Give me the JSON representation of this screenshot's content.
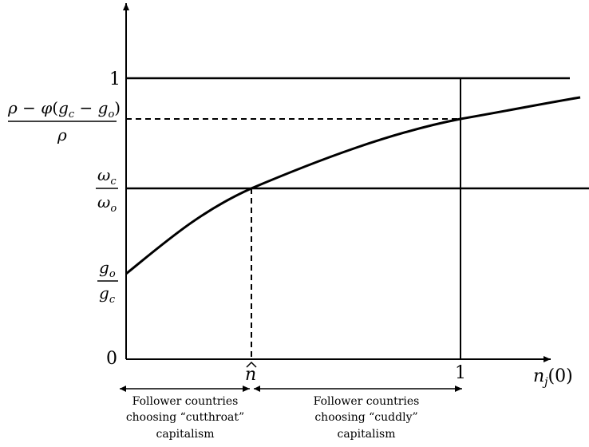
{
  "diagram": {
    "y_axis_labels": {
      "one": "1",
      "zero": "0",
      "upper_fraction": {
        "numerator": "ρ − φ(g",
        "den": "ρ"
      },
      "omega_fraction": {
        "num": "ω",
        "num_sub": "c",
        "den": "ω",
        "den_sub": "o"
      },
      "g_fraction": {
        "num": "g",
        "num_sub": "o",
        "den": "g",
        "den_sub": "c"
      }
    },
    "x_axis_labels": {
      "n_hat": "n",
      "hat": "^",
      "one": "1",
      "axis_name": "n",
      "axis_sub": "j",
      "axis_arg": "(0)"
    },
    "captions": {
      "left": [
        "Follower countries",
        "choosing “cutthroat”",
        "capitalism"
      ],
      "right": [
        "Follower countries",
        "choosing “cuddly”",
        "capitalism"
      ]
    },
    "curve": {
      "description_points": [
        [
          0,
          0.3
        ],
        [
          0.35,
          0.6
        ],
        [
          1.0,
          0.86
        ],
        [
          1.34,
          0.93
        ]
      ]
    },
    "levels": {
      "one": 1.0,
      "upper": 0.86,
      "omega": 0.6,
      "g": 0.3
    },
    "n_hat_value": 0.35
  }
}
